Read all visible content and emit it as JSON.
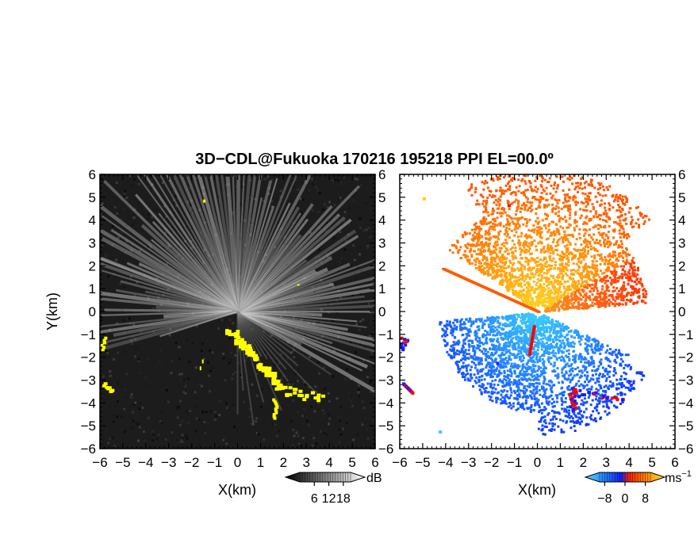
{
  "chart_data": [
    {
      "type": "heatmap",
      "panel": "reflectivity",
      "title": "3D−CDL@Fukuoka 170216 195218 PPI EL=00.0º",
      "xlabel": "X(km)",
      "ylabel": "Y(km)",
      "xlim": [
        -6,
        6
      ],
      "ylim": [
        -6,
        6
      ],
      "ticks": [
        "−6",
        "−5",
        "−4",
        "−3",
        "−2",
        "−1",
        "0",
        "1",
        "2",
        "3",
        "4",
        "5",
        "6"
      ],
      "grid": false,
      "colorbar": {
        "unit": "dB",
        "tick_labels": [
          "6",
          "12",
          "18"
        ],
        "range": [
          0,
          21
        ]
      },
      "colors": {
        "background": "#1c1c1c",
        "high": "#e6e6e6",
        "flag": "#ffff00"
      }
    },
    {
      "type": "heatmap",
      "panel": "doppler_velocity",
      "xlabel": "X(km)",
      "xlim": [
        -6,
        6
      ],
      "ylim": [
        -6,
        6
      ],
      "ticks": [
        "−6",
        "−5",
        "−4",
        "−3",
        "−2",
        "−1",
        "0",
        "1",
        "2",
        "3",
        "4",
        "5",
        "6"
      ],
      "grid": false,
      "colorbar": {
        "unit": "ms",
        "unit_exponent": "−1",
        "tick_labels": [
          "−8",
          "0",
          "8"
        ],
        "range": [
          -10,
          10
        ]
      },
      "colors": {
        "negative_far": "#1030ff",
        "negative_near": "#40c8f0",
        "positive_near": "#ffe040",
        "positive_far": "#ff5000",
        "edge": "#ff0000"
      }
    }
  ]
}
